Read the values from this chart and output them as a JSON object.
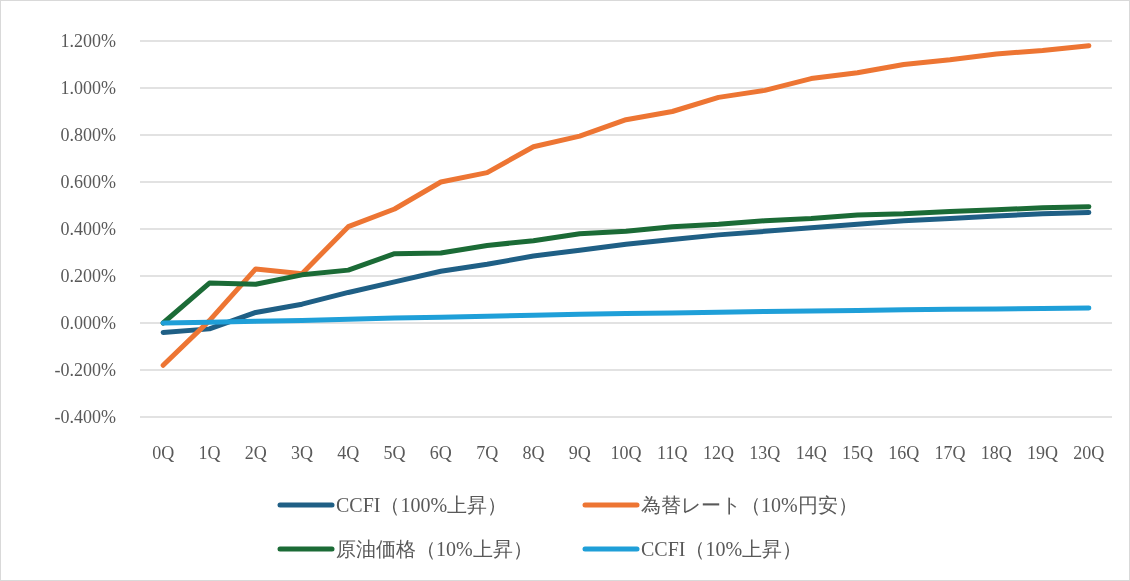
{
  "chart_data": {
    "type": "line",
    "categories": [
      "0Q",
      "1Q",
      "2Q",
      "3Q",
      "4Q",
      "5Q",
      "6Q",
      "7Q",
      "8Q",
      "9Q",
      "10Q",
      "11Q",
      "12Q",
      "13Q",
      "14Q",
      "15Q",
      "16Q",
      "17Q",
      "18Q",
      "19Q",
      "20Q"
    ],
    "series": [
      {
        "name": "CCFI（100%上昇）",
        "color": "#1f5f85",
        "values": [
          -0.04,
          -0.025,
          0.045,
          0.08,
          0.13,
          0.175,
          0.22,
          0.25,
          0.285,
          0.31,
          0.335,
          0.355,
          0.375,
          0.39,
          0.405,
          0.42,
          0.435,
          0.445,
          0.455,
          0.465,
          0.47
        ]
      },
      {
        "name": "為替レート（10%円安）",
        "color": "#ed7533",
        "values": [
          -0.18,
          0.01,
          0.23,
          0.21,
          0.41,
          0.485,
          0.6,
          0.64,
          0.75,
          0.795,
          0.865,
          0.9,
          0.96,
          0.99,
          1.04,
          1.065,
          1.1,
          1.12,
          1.145,
          1.16,
          1.18
        ]
      },
      {
        "name": "原油価格（10%上昇）",
        "color": "#1b6b36",
        "values": [
          0,
          0.17,
          0.165,
          0.205,
          0.225,
          0.295,
          0.298,
          0.33,
          0.35,
          0.38,
          0.39,
          0.41,
          0.42,
          0.435,
          0.445,
          0.46,
          0.465,
          0.475,
          0.482,
          0.49,
          0.495
        ]
      },
      {
        "name": "CCFI（10%上昇）",
        "color": "#1f9fd8",
        "values": [
          0,
          0.003,
          0.007,
          0.011,
          0.016,
          0.021,
          0.025,
          0.029,
          0.033,
          0.037,
          0.04,
          0.043,
          0.046,
          0.049,
          0.051,
          0.053,
          0.056,
          0.058,
          0.06,
          0.062,
          0.064
        ]
      }
    ],
    "ylim": [
      -0.4,
      1.2
    ],
    "yticks": [
      {
        "value": -0.4,
        "label": "-0.400%"
      },
      {
        "value": -0.2,
        "label": "-0.200%"
      },
      {
        "value": 0,
        "label": "0.000%"
      },
      {
        "value": 0.2,
        "label": "0.200%"
      },
      {
        "value": 0.4,
        "label": "0.400%"
      },
      {
        "value": 0.6,
        "label": "0.600%"
      },
      {
        "value": 0.8,
        "label": "0.800%"
      },
      {
        "value": 1.0,
        "label": "1.000%"
      },
      {
        "value": 1.2,
        "label": "1.200%"
      }
    ],
    "grid": "y",
    "legend": "bottom",
    "line_style": "solid",
    "marker": "none"
  }
}
